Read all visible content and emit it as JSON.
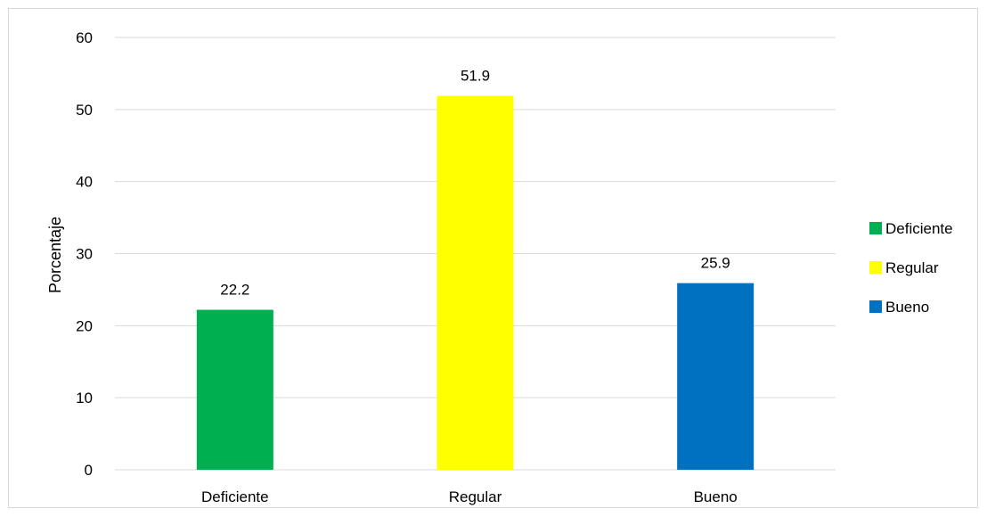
{
  "chart_data": {
    "type": "bar",
    "categories": [
      "Deficiente",
      "Regular",
      "Bueno"
    ],
    "values": [
      22.2,
      51.9,
      25.9
    ],
    "data_labels": [
      "22.2",
      "51.9",
      "25.9"
    ],
    "colors": [
      "#00b050",
      "#ffff00",
      "#0070c0"
    ],
    "title": "",
    "xlabel": "",
    "ylabel": "Porcentaje",
    "ylim": [
      0,
      60
    ],
    "yticks": [
      0,
      10,
      20,
      30,
      40,
      50,
      60
    ],
    "grid": true,
    "legend": {
      "placement": "right",
      "entries": [
        "Deficiente",
        "Regular",
        "Bueno"
      ]
    }
  }
}
